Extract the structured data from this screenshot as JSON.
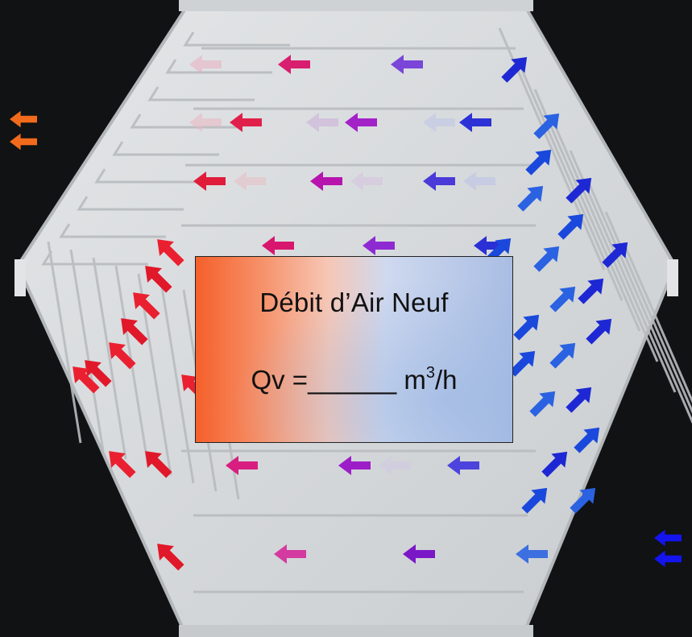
{
  "box": {
    "title": "Débit d’Air Neuf",
    "formula_prefix": "Qv =______ m",
    "formula_exponent": "3",
    "formula_suffix": "/h"
  },
  "colors": {
    "background": "#101213",
    "plate": "#d8dbdd",
    "warm_arrow": "#f26a1b",
    "cold_arrow": "#1414ee"
  },
  "icons": [
    "left-arrow-icon",
    "up-left-arrow-icon",
    "up-right-arrow-icon"
  ]
}
